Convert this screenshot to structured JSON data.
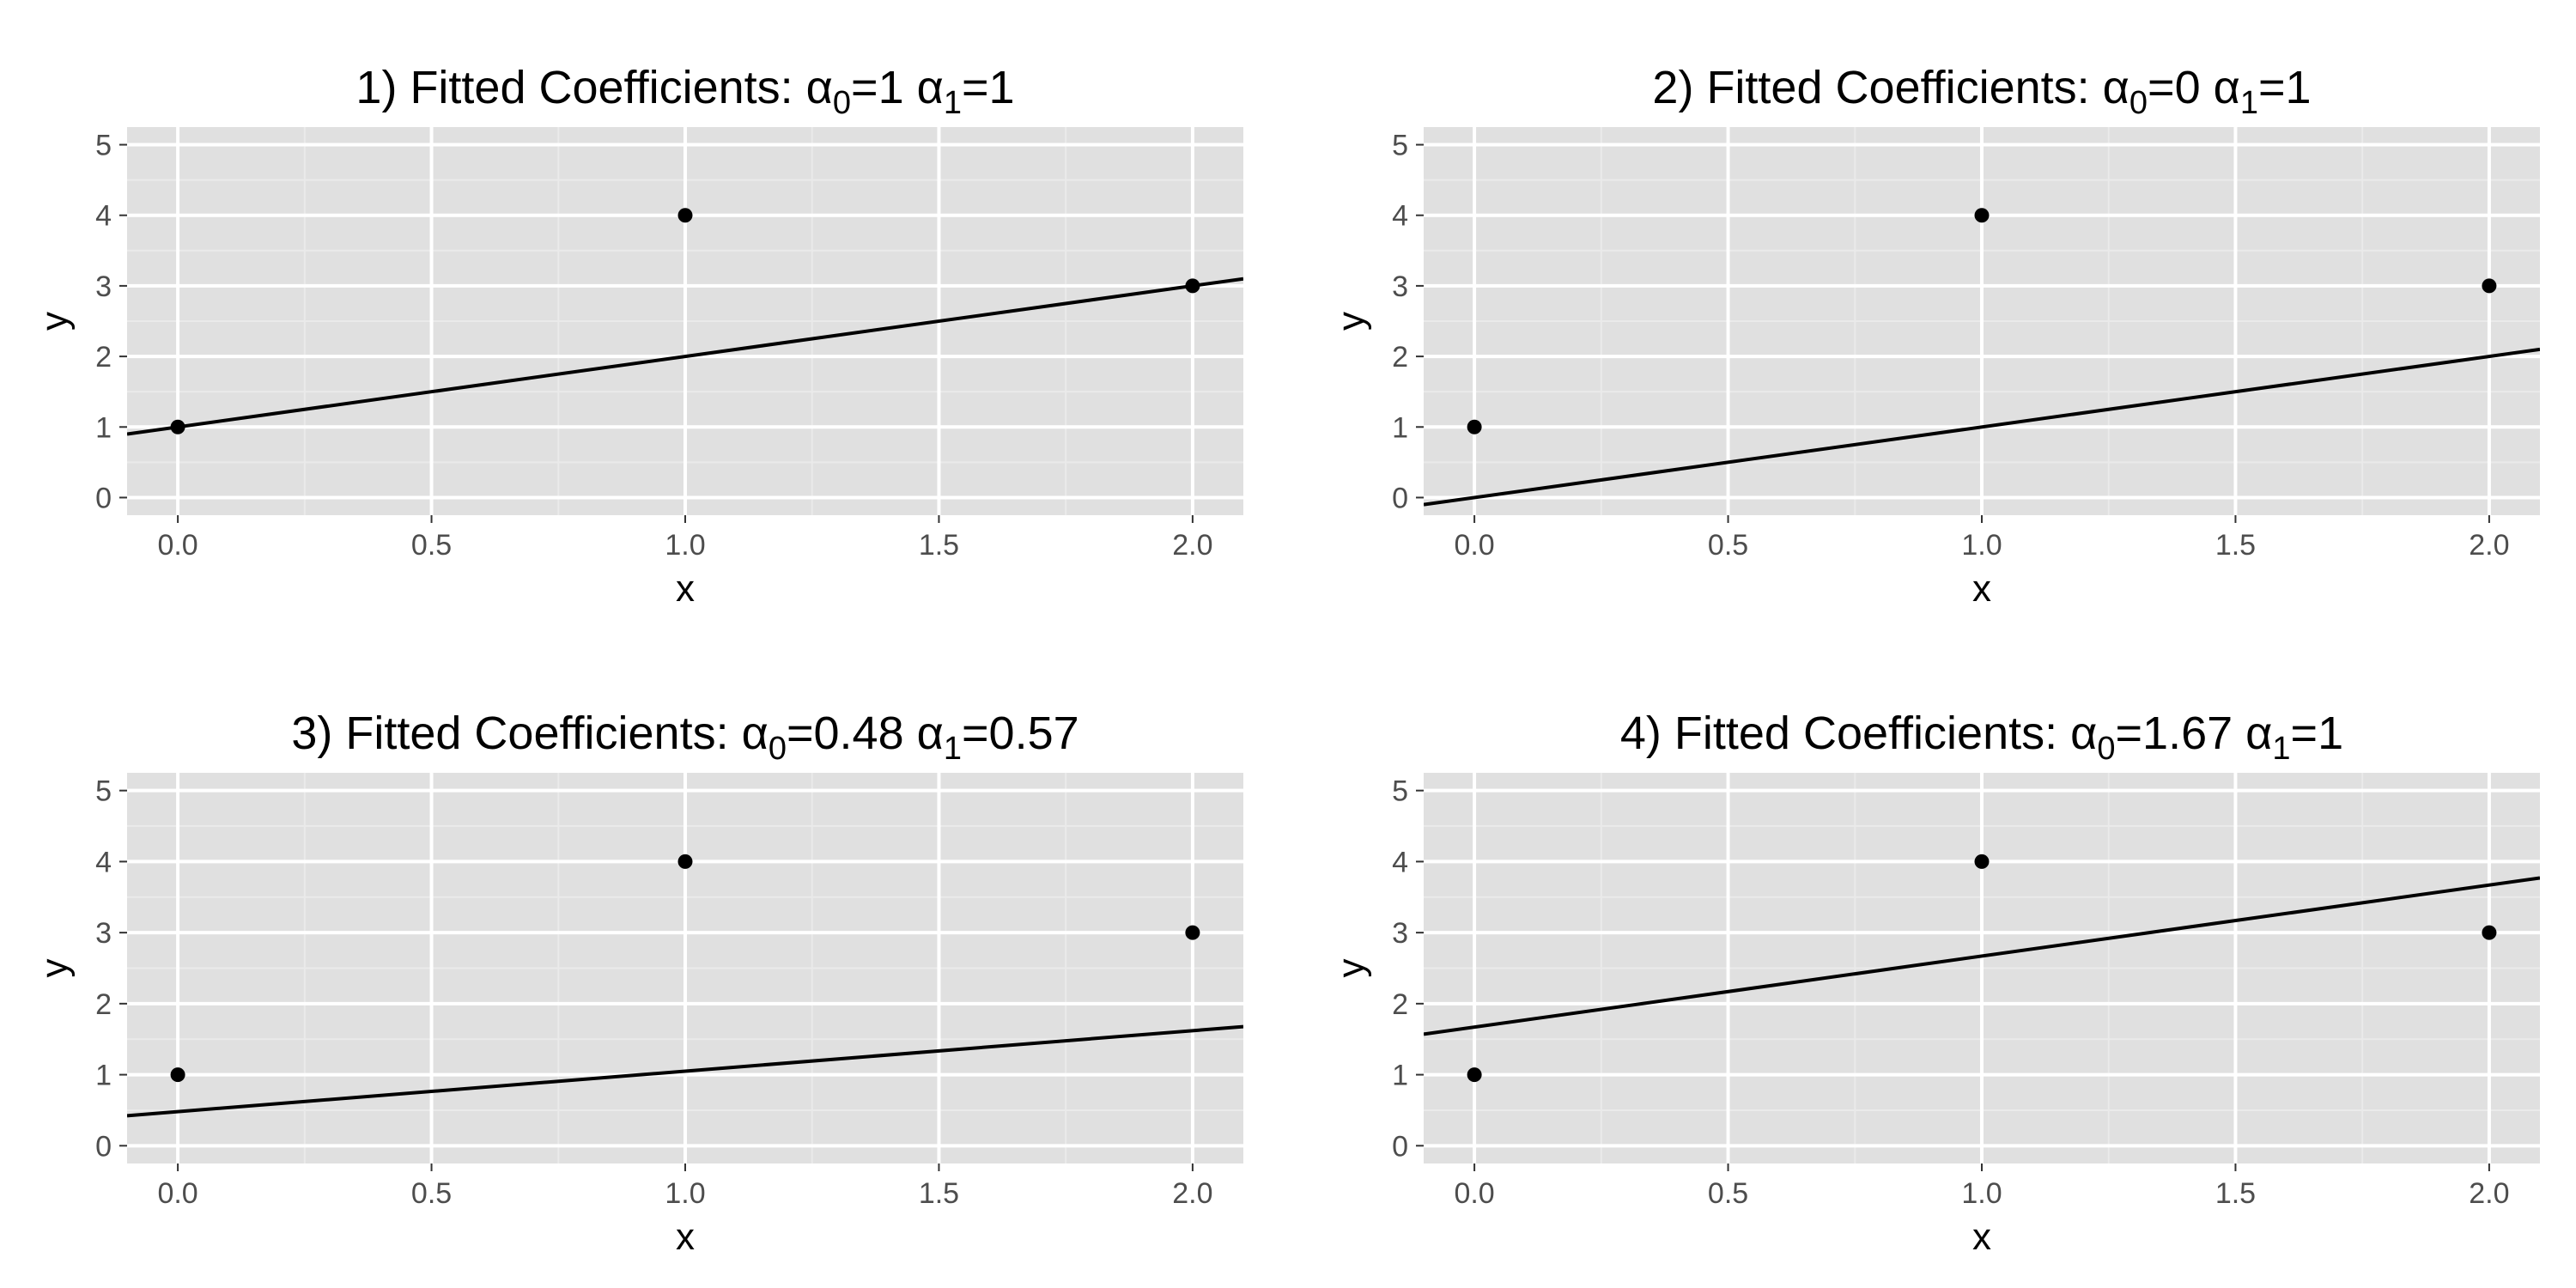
{
  "chart_data": [
    {
      "type": "scatter",
      "title": {
        "prefix": "1) Fitted Coefficients: ",
        "a0": "1",
        "a1": "1"
      },
      "xlabel": "x",
      "ylabel": "y",
      "xlim": [
        -0.1,
        2.1
      ],
      "ylim": [
        -0.25,
        5.25
      ],
      "xticks": [
        0.0,
        0.5,
        1.0,
        1.5,
        2.0
      ],
      "xtick_labels": [
        "0.0",
        "0.5",
        "1.0",
        "1.5",
        "2.0"
      ],
      "yticks": [
        0,
        1,
        2,
        3,
        4,
        5
      ],
      "ytick_labels": [
        "0",
        "1",
        "2",
        "3",
        "4",
        "5"
      ],
      "points": {
        "x": [
          0,
          1,
          2
        ],
        "y": [
          1,
          4,
          3
        ]
      },
      "fit_line": {
        "intercept": 1,
        "slope": 1
      },
      "grid": true
    },
    {
      "type": "scatter",
      "title": {
        "prefix": "2) Fitted Coefficients: ",
        "a0": "0",
        "a1": "1"
      },
      "xlabel": "x",
      "ylabel": "y",
      "xlim": [
        -0.1,
        2.1
      ],
      "ylim": [
        -0.25,
        5.25
      ],
      "xticks": [
        0.0,
        0.5,
        1.0,
        1.5,
        2.0
      ],
      "xtick_labels": [
        "0.0",
        "0.5",
        "1.0",
        "1.5",
        "2.0"
      ],
      "yticks": [
        0,
        1,
        2,
        3,
        4,
        5
      ],
      "ytick_labels": [
        "0",
        "1",
        "2",
        "3",
        "4",
        "5"
      ],
      "points": {
        "x": [
          0,
          1,
          2
        ],
        "y": [
          1,
          4,
          3
        ]
      },
      "fit_line": {
        "intercept": 0,
        "slope": 1
      },
      "grid": true
    },
    {
      "type": "scatter",
      "title": {
        "prefix": "3) Fitted Coefficients: ",
        "a0": "0.48",
        "a1": "0.57"
      },
      "xlabel": "x",
      "ylabel": "y",
      "xlim": [
        -0.1,
        2.1
      ],
      "ylim": [
        -0.25,
        5.25
      ],
      "xticks": [
        0.0,
        0.5,
        1.0,
        1.5,
        2.0
      ],
      "xtick_labels": [
        "0.0",
        "0.5",
        "1.0",
        "1.5",
        "2.0"
      ],
      "yticks": [
        0,
        1,
        2,
        3,
        4,
        5
      ],
      "ytick_labels": [
        "0",
        "1",
        "2",
        "3",
        "4",
        "5"
      ],
      "points": {
        "x": [
          0,
          1,
          2
        ],
        "y": [
          1,
          4,
          3
        ]
      },
      "fit_line": {
        "intercept": 0.48,
        "slope": 0.57
      },
      "grid": true
    },
    {
      "type": "scatter",
      "title": {
        "prefix": "4) Fitted Coefficients: ",
        "a0": "1.67",
        "a1": "1"
      },
      "xlabel": "x",
      "ylabel": "y",
      "xlim": [
        -0.1,
        2.1
      ],
      "ylim": [
        -0.25,
        5.25
      ],
      "xticks": [
        0.0,
        0.5,
        1.0,
        1.5,
        2.0
      ],
      "xtick_labels": [
        "0.0",
        "0.5",
        "1.0",
        "1.5",
        "2.0"
      ],
      "yticks": [
        0,
        1,
        2,
        3,
        4,
        5
      ],
      "ytick_labels": [
        "0",
        "1",
        "2",
        "3",
        "4",
        "5"
      ],
      "points": {
        "x": [
          0,
          1,
          2
        ],
        "y": [
          1,
          4,
          3
        ]
      },
      "fit_line": {
        "intercept": 1.67,
        "slope": 1
      },
      "grid": true
    }
  ],
  "symbols": {
    "alpha": "α",
    "sub0": "0",
    "sub1": "1",
    "equals": "="
  },
  "colors": {
    "panel_background": "#e0e0e0",
    "grid_major": "#ffffff",
    "grid_minor": "#eaeaea",
    "point": "#000000",
    "line": "#000000",
    "tick_text": "#4d4d4d"
  }
}
